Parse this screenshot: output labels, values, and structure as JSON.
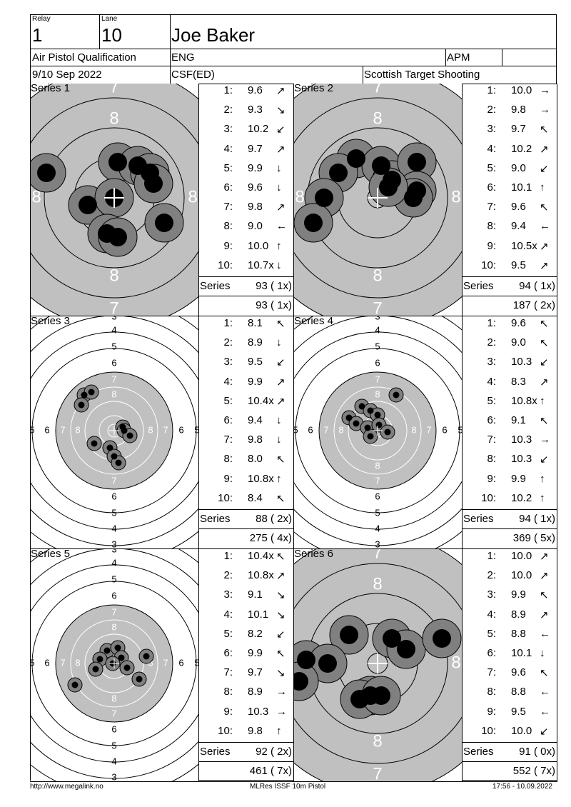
{
  "header": {
    "relay_label": "Relay",
    "relay": "1",
    "lane_label": "Lane",
    "lane": "10",
    "name": "Joe Baker",
    "event": "Air Pistol Qualification",
    "nation": "ENG",
    "category": "APM",
    "date": "9/10 Sep 2022",
    "club": "CSF(ED)",
    "organizer": "Scottish Target Shooting"
  },
  "series": [
    {
      "label": "Series 1",
      "target": "precision",
      "shots": [
        {
          "n": "1:",
          "v": "9.6",
          "dir": "↗"
        },
        {
          "n": "2:",
          "v": "9.3",
          "dir": "↘"
        },
        {
          "n": "3:",
          "v": "10.2",
          "dir": "↙"
        },
        {
          "n": "4:",
          "v": "9.7",
          "dir": "↗"
        },
        {
          "n": "5:",
          "v": "9.9",
          "dir": "↓"
        },
        {
          "n": "6:",
          "v": "9.6",
          "dir": "↓"
        },
        {
          "n": "7:",
          "v": "9.8",
          "dir": "↗"
        },
        {
          "n": "8:",
          "v": "9.0",
          "dir": "←"
        },
        {
          "n": "9:",
          "v": "10.0",
          "dir": "↑"
        },
        {
          "n": "10:",
          "v": "10.7x",
          "dir": "↓"
        }
      ],
      "series_label": "Series",
      "series_total": "93 ( 1x)",
      "running_total": "93 ( 1x)",
      "hits": [
        [
          -95,
          -35
        ],
        [
          -37,
          10
        ],
        [
          5,
          -50
        ],
        [
          33,
          -45
        ],
        [
          50,
          -35
        ],
        [
          55,
          -20
        ],
        [
          0,
          0
        ],
        [
          -10,
          50
        ],
        [
          5,
          55
        ],
        [
          70,
          35
        ]
      ]
    },
    {
      "label": "Series 2",
      "target": "precision",
      "shots": [
        {
          "n": "1:",
          "v": "10.0",
          "dir": "→"
        },
        {
          "n": "2:",
          "v": "9.8",
          "dir": "→"
        },
        {
          "n": "3:",
          "v": "9.7",
          "dir": "↖"
        },
        {
          "n": "4:",
          "v": "10.2",
          "dir": "↗"
        },
        {
          "n": "5:",
          "v": "9.0",
          "dir": "↙"
        },
        {
          "n": "6:",
          "v": "10.1",
          "dir": "↑"
        },
        {
          "n": "7:",
          "v": "9.6",
          "dir": "↖"
        },
        {
          "n": "8:",
          "v": "9.4",
          "dir": "←"
        },
        {
          "n": "9:",
          "v": "10.5x",
          "dir": "↗"
        },
        {
          "n": "10:",
          "v": "9.5",
          "dir": "↗"
        }
      ],
      "series_label": "Series",
      "series_total": "94 ( 1x)",
      "running_total": "187 ( 2x)",
      "hits": [
        [
          -30,
          -55
        ],
        [
          -55,
          -35
        ],
        [
          5,
          -45
        ],
        [
          20,
          -25
        ],
        [
          55,
          -50
        ],
        [
          55,
          -10
        ],
        [
          50,
          0
        ],
        [
          -75,
          0
        ],
        [
          -90,
          35
        ],
        [
          15,
          -15
        ]
      ]
    },
    {
      "label": "Series 3",
      "target": "rapid",
      "shots": [
        {
          "n": "1:",
          "v": "8.1",
          "dir": "↖"
        },
        {
          "n": "2:",
          "v": "8.9",
          "dir": "↓"
        },
        {
          "n": "3:",
          "v": "9.5",
          "dir": "↙"
        },
        {
          "n": "4:",
          "v": "9.9",
          "dir": "↗"
        },
        {
          "n": "5:",
          "v": "10.4x",
          "dir": "↗"
        },
        {
          "n": "6:",
          "v": "9.4",
          "dir": "↓"
        },
        {
          "n": "7:",
          "v": "9.8",
          "dir": "↓"
        },
        {
          "n": "8:",
          "v": "8.0",
          "dir": "↖"
        },
        {
          "n": "9:",
          "v": "10.8x",
          "dir": "↑"
        },
        {
          "n": "10:",
          "v": "8.4",
          "dir": "↖"
        }
      ],
      "series_label": "Series",
      "series_total": "88 ( 2x)",
      "running_total": "275 ( 4x)",
      "hits": [
        [
          -42,
          -50
        ],
        [
          -32,
          -54
        ],
        [
          -46,
          -36
        ],
        [
          12,
          -5
        ],
        [
          14,
          0
        ],
        [
          22,
          7
        ],
        [
          -28,
          18
        ],
        [
          -6,
          24
        ],
        [
          0,
          36
        ],
        [
          6,
          45
        ]
      ]
    },
    {
      "label": "Series 4",
      "target": "rapid",
      "shots": [
        {
          "n": "1:",
          "v": "9.6",
          "dir": "↖"
        },
        {
          "n": "2:",
          "v": "9.0",
          "dir": "↖"
        },
        {
          "n": "3:",
          "v": "10.3",
          "dir": "↙"
        },
        {
          "n": "4:",
          "v": "8.3",
          "dir": "↗"
        },
        {
          "n": "5:",
          "v": "10.8x",
          "dir": "↑"
        },
        {
          "n": "6:",
          "v": "9.1",
          "dir": "↖"
        },
        {
          "n": "7:",
          "v": "10.3",
          "dir": "→"
        },
        {
          "n": "8:",
          "v": "10.3",
          "dir": "↙"
        },
        {
          "n": "9:",
          "v": "9.9",
          "dir": "↑"
        },
        {
          "n": "10:",
          "v": "10.2",
          "dir": "↑"
        }
      ],
      "series_label": "Series",
      "series_total": "94 ( 1x)",
      "running_total": "369 ( 5x)",
      "hits": [
        [
          -22,
          -34
        ],
        [
          -10,
          -28
        ],
        [
          0,
          -22
        ],
        [
          26,
          -50
        ],
        [
          -40,
          -18
        ],
        [
          -30,
          -10
        ],
        [
          -14,
          -4
        ],
        [
          2,
          -8
        ],
        [
          14,
          2
        ],
        [
          -10,
          8
        ]
      ]
    },
    {
      "label": "Series 5",
      "target": "rapid",
      "shots": [
        {
          "n": "1:",
          "v": "10.4x",
          "dir": "↖"
        },
        {
          "n": "2:",
          "v": "10.8x",
          "dir": "↗"
        },
        {
          "n": "3:",
          "v": "9.1",
          "dir": "↘"
        },
        {
          "n": "4:",
          "v": "10.1",
          "dir": "↘"
        },
        {
          "n": "5:",
          "v": "8.2",
          "dir": "↙"
        },
        {
          "n": "6:",
          "v": "9.9",
          "dir": "↖"
        },
        {
          "n": "7:",
          "v": "9.7",
          "dir": "↘"
        },
        {
          "n": "8:",
          "v": "8.9",
          "dir": "→"
        },
        {
          "n": "9:",
          "v": "10.3",
          "dir": "→"
        },
        {
          "n": "10:",
          "v": "9.8",
          "dir": "↑"
        }
      ],
      "series_label": "Series",
      "series_total": "92 ( 2x)",
      "running_total": "461 ( 7x)",
      "hits": [
        [
          -10,
          -18
        ],
        [
          5,
          -22
        ],
        [
          10,
          -8
        ],
        [
          -20,
          -6
        ],
        [
          -26,
          8
        ],
        [
          18,
          6
        ],
        [
          35,
          22
        ],
        [
          45,
          -10
        ],
        [
          -55,
          30
        ],
        [
          -2,
          0
        ]
      ]
    },
    {
      "label": "Series 6",
      "target": "precision",
      "shots": [
        {
          "n": "1:",
          "v": "10.0",
          "dir": "↗"
        },
        {
          "n": "2:",
          "v": "10.0",
          "dir": "↗"
        },
        {
          "n": "3:",
          "v": "9.9",
          "dir": "↖"
        },
        {
          "n": "4:",
          "v": "8.9",
          "dir": "↗"
        },
        {
          "n": "5:",
          "v": "8.8",
          "dir": "←"
        },
        {
          "n": "6:",
          "v": "10.1",
          "dir": "↓"
        },
        {
          "n": "7:",
          "v": "9.6",
          "dir": "↖"
        },
        {
          "n": "8:",
          "v": "8.8",
          "dir": "←"
        },
        {
          "n": "9:",
          "v": "9.5",
          "dir": "←"
        },
        {
          "n": "10:",
          "v": "10.0",
          "dir": "↙"
        }
      ],
      "series_label": "Series",
      "series_total": "91 ( 0x)",
      "running_total": "552 ( 7x)",
      "hits": [
        [
          -40,
          -40
        ],
        [
          20,
          -35
        ],
        [
          40,
          -20
        ],
        [
          90,
          -35
        ],
        [
          -100,
          -5
        ],
        [
          -70,
          0
        ],
        [
          -110,
          25
        ],
        [
          -10,
          45
        ],
        [
          -25,
          50
        ],
        [
          5,
          45
        ]
      ]
    }
  ],
  "precision_labels": {
    "top": "7",
    "upper": "8",
    "lower": "8",
    "bottom": "7",
    "left": "8",
    "right": "8"
  },
  "rapid_labels": {
    "top": [
      "3",
      "4",
      "5",
      "6",
      "7",
      "8"
    ],
    "bottom": [
      "8",
      "7",
      "6",
      "5",
      "4",
      "3"
    ],
    "left": [
      "5",
      "6",
      "7",
      "8"
    ],
    "right": [
      "8",
      "7",
      "6",
      "5"
    ]
  },
  "footer": {
    "url": "http://www.megalink.no",
    "program": "MLRes ISSF 10m Pistol",
    "timestamp": "17:56 - 10.09.2022"
  },
  "colors": {
    "grey": "#c0c0c0",
    "hit_outer": "#808080",
    "hit_inner": "#000000"
  }
}
